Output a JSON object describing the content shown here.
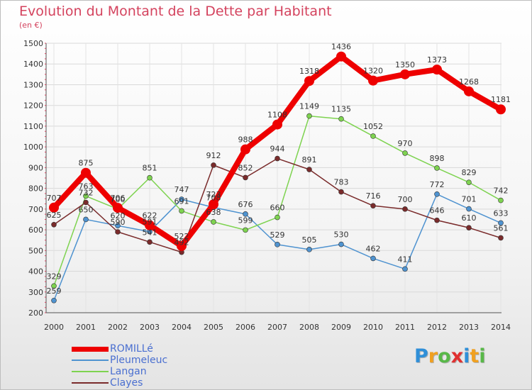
{
  "title": "Evolution du Montant de la Dette par Habitant",
  "subtitle": "(en €)",
  "logo": {
    "text": "Proxiti",
    "letters": [
      {
        "ch": "P",
        "color": "#2f8fd8"
      },
      {
        "ch": "r",
        "color": "#f0a020"
      },
      {
        "ch": "o",
        "color": "#58b848"
      },
      {
        "ch": "x",
        "color": "#e03030"
      },
      {
        "ch": "i",
        "color": "#2f8fd8"
      },
      {
        "ch": "t",
        "color": "#f0a020"
      },
      {
        "ch": "i",
        "color": "#58b848"
      }
    ]
  },
  "chart_data": {
    "type": "line",
    "title": "Evolution du Montant de la Dette par Habitant",
    "ylabel": "(en €)",
    "xlabel": "",
    "x": [
      "2000",
      "2001",
      "2002",
      "2003",
      "2004",
      "2005",
      "2006",
      "2007",
      "2008",
      "2009",
      "2010",
      "2011",
      "2012",
      "2013",
      "2014"
    ],
    "ylim": [
      200,
      1500
    ],
    "yticks": [
      200,
      300,
      400,
      500,
      600,
      700,
      800,
      900,
      1000,
      1100,
      1200,
      1300,
      1400,
      1500
    ],
    "grid": true,
    "legend": "bottom-left",
    "series": [
      {
        "name": "ROMILLé",
        "color": "#ee0000",
        "emphasis": true,
        "values": [
          707,
          875,
          706,
          622,
          522,
          723,
          988,
          1108,
          1318,
          1436,
          1320,
          1350,
          1373,
          1268,
          1181
        ]
      },
      {
        "name": "Pleumeleuc",
        "color": "#4f93d0",
        "values": [
          259,
          650,
          620,
          591,
          747,
          708,
          676,
          529,
          505,
          530,
          462,
          411,
          772,
          701,
          633
        ]
      },
      {
        "name": "Langan",
        "color": "#7ed350",
        "values": [
          329,
          763,
          700,
          851,
          691,
          638,
          599,
          660,
          1149,
          1135,
          1052,
          970,
          898,
          829,
          742
        ]
      },
      {
        "name": "Clayes",
        "color": "#7a2b2b",
        "values": [
          625,
          732,
          590,
          541,
          492,
          912,
          852,
          944,
          891,
          783,
          716,
          700,
          646,
          610,
          561
        ]
      }
    ]
  }
}
